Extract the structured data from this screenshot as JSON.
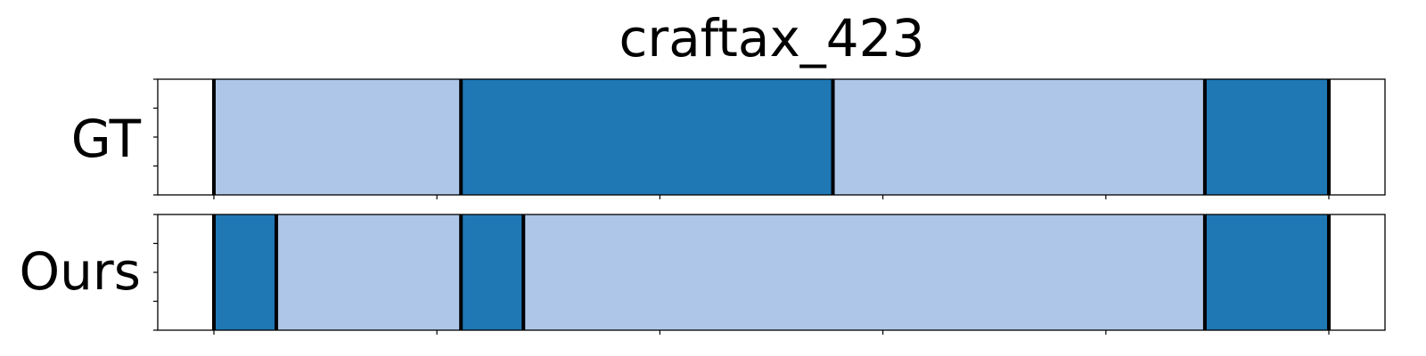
{
  "chart_data": {
    "type": "bar",
    "title": "craftax_423",
    "xlim": [
      0,
      1.25
    ],
    "x_ticks": [
      0.0,
      0.25,
      0.5,
      0.75,
      1.0,
      1.25
    ],
    "show_tick_labels": false,
    "colors": {
      "light": "#aec7e8",
      "dark": "#1f77b4",
      "boundary": "#000000"
    },
    "rows": [
      {
        "label": "GT",
        "segments": [
          {
            "start": 0.0,
            "end": 0.277,
            "color": "light"
          },
          {
            "start": 0.277,
            "end": 0.694,
            "color": "dark"
          },
          {
            "start": 0.694,
            "end": 1.111,
            "color": "light"
          },
          {
            "start": 1.111,
            "end": 1.25,
            "color": "dark"
          }
        ]
      },
      {
        "label": "Ours",
        "segments": [
          {
            "start": 0.0,
            "end": 0.07,
            "color": "dark"
          },
          {
            "start": 0.07,
            "end": 0.277,
            "color": "light"
          },
          {
            "start": 0.277,
            "end": 0.347,
            "color": "dark"
          },
          {
            "start": 0.347,
            "end": 1.111,
            "color": "light"
          },
          {
            "start": 1.111,
            "end": 1.25,
            "color": "dark"
          }
        ]
      }
    ]
  }
}
